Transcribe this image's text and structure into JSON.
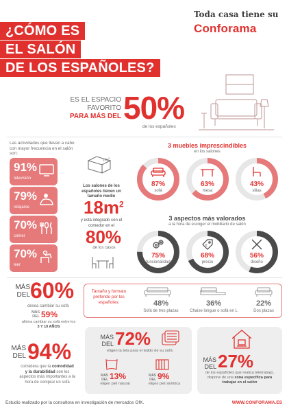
{
  "header": {
    "title_line1": "¿CÓMO ES",
    "title_line2": "EL SALÓN",
    "title_line3": "DE LOS ESPAÑOLES?",
    "brand_tagline": "Toda casa tiene su",
    "brand_name": "Conforama"
  },
  "favorite": {
    "line1": "ES EL ESPACIO",
    "line2": "FAVORITO",
    "line3": "PARA MÁS DEL",
    "big": "50%",
    "sub": "de los españoles"
  },
  "activities": {
    "intro": "Las actividades que llevan a cabo con mayor frecuencia en el salón son:",
    "items": [
      {
        "pct": "91%",
        "label": "televisión",
        "icon": "tv-icon"
      },
      {
        "pct": "79%",
        "label": "relajarse",
        "icon": "beanbag-icon"
      },
      {
        "pct": "70%",
        "label": "comer",
        "icon": "cutlery-icon"
      },
      {
        "pct": "70%",
        "label": "leer",
        "icon": "reading-icon"
      }
    ]
  },
  "size": {
    "text1": "Los salones de los españoles tienen un tamaño medio",
    "big": "18m",
    "sup": "2",
    "text2": "y está integrado con el comedor en el",
    "pct": "80%",
    "text3": "de los casos"
  },
  "furniture": {
    "title": "3 muebles imprescindibles",
    "subtitle": "en los salones",
    "items": [
      {
        "pct": "87%",
        "label": "sofá",
        "value": 87
      },
      {
        "pct": "63%",
        "label": "mesa",
        "value": 63
      },
      {
        "pct": "43%",
        "label": "sillas",
        "value": 43
      }
    ]
  },
  "aspects": {
    "title": "3 aspectos más valorados",
    "subtitle": "a la hora de escoger el mobiliario de salón",
    "items": [
      {
        "pct": "75%",
        "label": "funcionalidad",
        "value": 75
      },
      {
        "pct": "68%",
        "label": "precio",
        "value": 68
      },
      {
        "pct": "56%",
        "label": "diseño",
        "value": 56
      }
    ]
  },
  "change": {
    "mas": "MÁS",
    "del": "DEL",
    "big": "60%",
    "text": "desea cambiar su sofá",
    "mas2": "MÁS",
    "del2": "DEL",
    "pct2": "59%",
    "text2": "afirma cambiar su sofá entre los",
    "text3": "3 Y 10 AÑOS"
  },
  "sofa_types": {
    "title": "Tamaño y formato preferido por los españoles:",
    "items": [
      {
        "pct": "48%",
        "label": "Sofá de tres plazas"
      },
      {
        "pct": "36%",
        "label": "Chaise longue o sofá en L"
      },
      {
        "pct": "22%",
        "label": "Dos plazas"
      }
    ]
  },
  "comfort": {
    "mas": "MÁS",
    "del": "DEL",
    "big": "94%",
    "text1": "considera que la",
    "text2": "comodidad y la durabilidad",
    "text3": "son los aspectos más importantes a la hora de comprar un sofá"
  },
  "fabric": {
    "mas": "MÁS",
    "del": "DEL",
    "big": "72%",
    "text": "eligen la tela para el tejido de su sofá",
    "natural_pct": "13%",
    "natural_text": "eligen piel natural",
    "synthetic_pct": "9%",
    "synthetic_text": "eligen piel sintética"
  },
  "telework": {
    "mas": "MÁS",
    "del": "DEL",
    "big": "27%",
    "text1": "de los españoles que realiza teletrabajo, dispone de una",
    "text2": "zona específica para trabajar en el salón"
  },
  "footer": {
    "left": "Estudio realizado por la consultora en investigación de mercados GfK.",
    "right": "WWW.CONFORAMA.ES"
  },
  "colors": {
    "accent": "#e0312f",
    "soft": "#e6797a",
    "dark": "#4a4a4a",
    "ring": "#e7e7e7"
  }
}
